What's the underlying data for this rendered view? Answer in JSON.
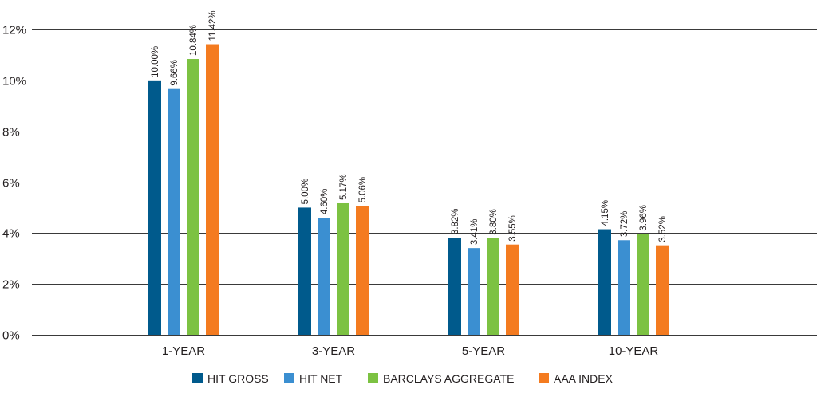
{
  "chart_data": {
    "type": "bar",
    "categories": [
      "1-YEAR",
      "3-YEAR",
      "5-YEAR",
      "10-YEAR"
    ],
    "series": [
      {
        "name": "HIT GROSS",
        "color": "#005a8c",
        "values": [
          10.0,
          5.0,
          3.82,
          4.15
        ],
        "labels": [
          "10.00%",
          "5.00%",
          "3.82%",
          "4.15%"
        ]
      },
      {
        "name": "HIT NET",
        "color": "#3b8fd1",
        "values": [
          9.66,
          4.6,
          3.41,
          3.72
        ],
        "labels": [
          "9.66%",
          "4.60%",
          "3.41%",
          "3.72%"
        ]
      },
      {
        "name": "BARCLAYS AGGREGATE",
        "color": "#7cc242",
        "values": [
          10.84,
          5.17,
          3.8,
          3.96
        ],
        "labels": [
          "10.84%",
          "5.17%",
          "3.80%",
          "3.96%"
        ]
      },
      {
        "name": "AAA INDEX",
        "color": "#f47b20",
        "values": [
          11.42,
          5.06,
          3.55,
          3.52
        ],
        "labels": [
          "11.42%",
          "5.06%",
          "3.55%",
          "3.52%"
        ]
      }
    ],
    "y_ticks": [
      0,
      2,
      4,
      6,
      8,
      10,
      12
    ],
    "y_tick_labels": [
      "0%",
      "2%",
      "4%",
      "6%",
      "8%",
      "10%",
      "12%"
    ],
    "ylim": [
      0,
      12
    ],
    "title": "",
    "xlabel": "",
    "ylabel": "",
    "grid": true,
    "legend_position": "bottom"
  }
}
